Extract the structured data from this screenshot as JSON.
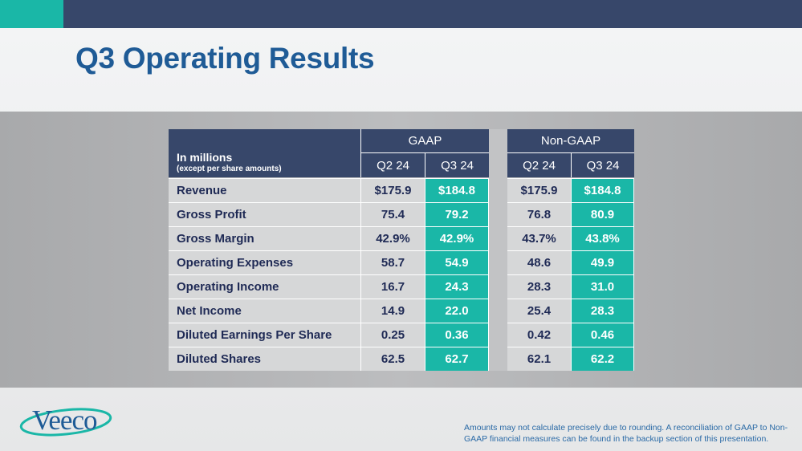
{
  "title": "Q3 Operating Results",
  "colors": {
    "navy": "#37476a",
    "teal": "#1ab7a7",
    "title_blue": "#1f5b96",
    "cell_gray": "#d6d7d8"
  },
  "table": {
    "units_label": "In millions",
    "units_sublabel": "(except per share amounts)",
    "groups": [
      {
        "label": "GAAP",
        "columns": [
          "Q2 24",
          "Q3 24"
        ]
      },
      {
        "label": "Non-GAAP",
        "columns": [
          "Q2 24",
          "Q3 24"
        ]
      }
    ],
    "rows": [
      {
        "label": "Revenue",
        "values": [
          "$175.9",
          "$184.8",
          "$175.9",
          "$184.8"
        ]
      },
      {
        "label": "Gross Profit",
        "values": [
          "75.4",
          "79.2",
          "76.8",
          "80.9"
        ]
      },
      {
        "label": "Gross Margin",
        "values": [
          "42.9%",
          "42.9%",
          "43.7%",
          "43.8%"
        ]
      },
      {
        "label": "Operating Expenses",
        "values": [
          "58.7",
          "54.9",
          "48.6",
          "49.9"
        ]
      },
      {
        "label": "Operating Income",
        "values": [
          "16.7",
          "24.3",
          "28.3",
          "31.0"
        ]
      },
      {
        "label": "Net Income",
        "values": [
          "14.9",
          "22.0",
          "25.4",
          "28.3"
        ]
      },
      {
        "label": "Diluted Earnings Per Share",
        "values": [
          "0.25",
          "0.36",
          "0.42",
          "0.46"
        ]
      },
      {
        "label": "Diluted Shares",
        "values": [
          "62.5",
          "62.7",
          "62.1",
          "62.2"
        ]
      }
    ]
  },
  "logo": {
    "text": "Veeco"
  },
  "footnote": "Amounts may not calculate precisely due to rounding.  A reconciliation of GAAP to Non-GAAP financial measures can be found in the backup section of this presentation."
}
